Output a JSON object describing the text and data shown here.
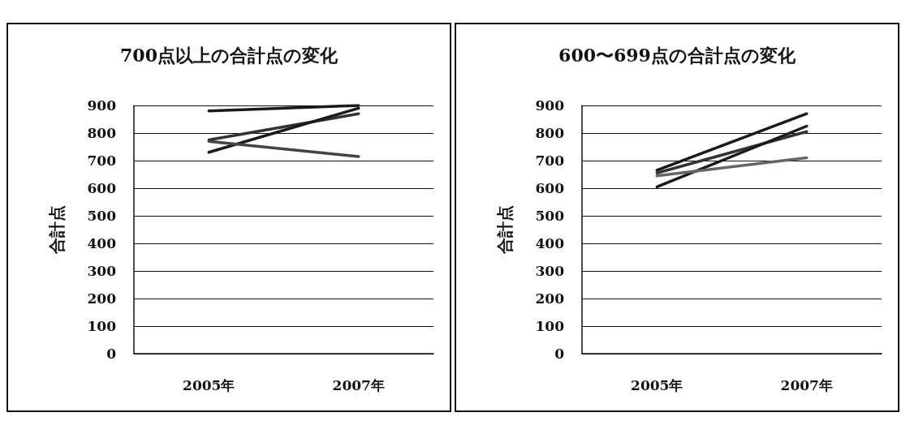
{
  "chart_data": [
    {
      "type": "line",
      "title": "700点以上の合計点の変化",
      "ylabel": "合計点",
      "categories": [
        "2005年",
        "2007年"
      ],
      "series": [
        {
          "color": "#1a1a1a",
          "values": [
            880,
            900
          ]
        },
        {
          "color": "#333333",
          "values": [
            775,
            870
          ]
        },
        {
          "color": "#1a1a1a",
          "values": [
            730,
            890
          ]
        },
        {
          "color": "#444444",
          "values": [
            770,
            715
          ]
        }
      ],
      "ylim": [
        0,
        900
      ],
      "yticks": [
        0,
        100,
        200,
        300,
        400,
        500,
        600,
        700,
        800,
        900
      ],
      "grid": "y",
      "marker": "none"
    },
    {
      "type": "line",
      "title": "600〜699点の合計点の変化",
      "ylabel": "合計点",
      "categories": [
        "2005年",
        "2007年"
      ],
      "series": [
        {
          "color": "#1a1a1a",
          "values": [
            665,
            870
          ]
        },
        {
          "color": "#333333",
          "values": [
            655,
            805
          ]
        },
        {
          "color": "#1a1a1a",
          "values": [
            605,
            825
          ]
        },
        {
          "color": "#666666",
          "values": [
            645,
            710
          ]
        }
      ],
      "ylim": [
        0,
        900
      ],
      "yticks": [
        0,
        100,
        200,
        300,
        400,
        500,
        600,
        700,
        800,
        900
      ],
      "grid": "y",
      "marker": "none"
    }
  ]
}
